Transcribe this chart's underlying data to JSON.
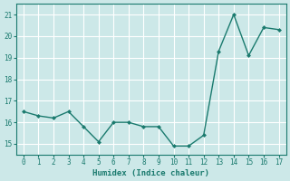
{
  "line_x": [
    0,
    1,
    2,
    3,
    4,
    5,
    6,
    7,
    8,
    9,
    10,
    11,
    12,
    13,
    14,
    15,
    16,
    17
  ],
  "line_y": [
    16.5,
    16.3,
    16.2,
    16.5,
    15.8,
    15.1,
    16.0,
    16.0,
    15.8,
    15.8,
    14.9,
    14.9,
    15.4,
    19.3,
    21.0,
    19.1,
    20.4,
    20.3
  ],
  "color": "#1a7a6e",
  "bg_color": "#cce8e8",
  "grid_color": "#ffffff",
  "xlabel": "Humidex (Indice chaleur)",
  "xlim": [
    -0.5,
    17.5
  ],
  "ylim": [
    14.5,
    21.5
  ],
  "xticks": [
    0,
    1,
    2,
    3,
    4,
    5,
    6,
    7,
    8,
    9,
    10,
    11,
    12,
    13,
    14,
    15,
    16,
    17
  ],
  "yticks": [
    15,
    16,
    17,
    18,
    19,
    20,
    21
  ],
  "markersize": 2.5,
  "linewidth": 1.0
}
